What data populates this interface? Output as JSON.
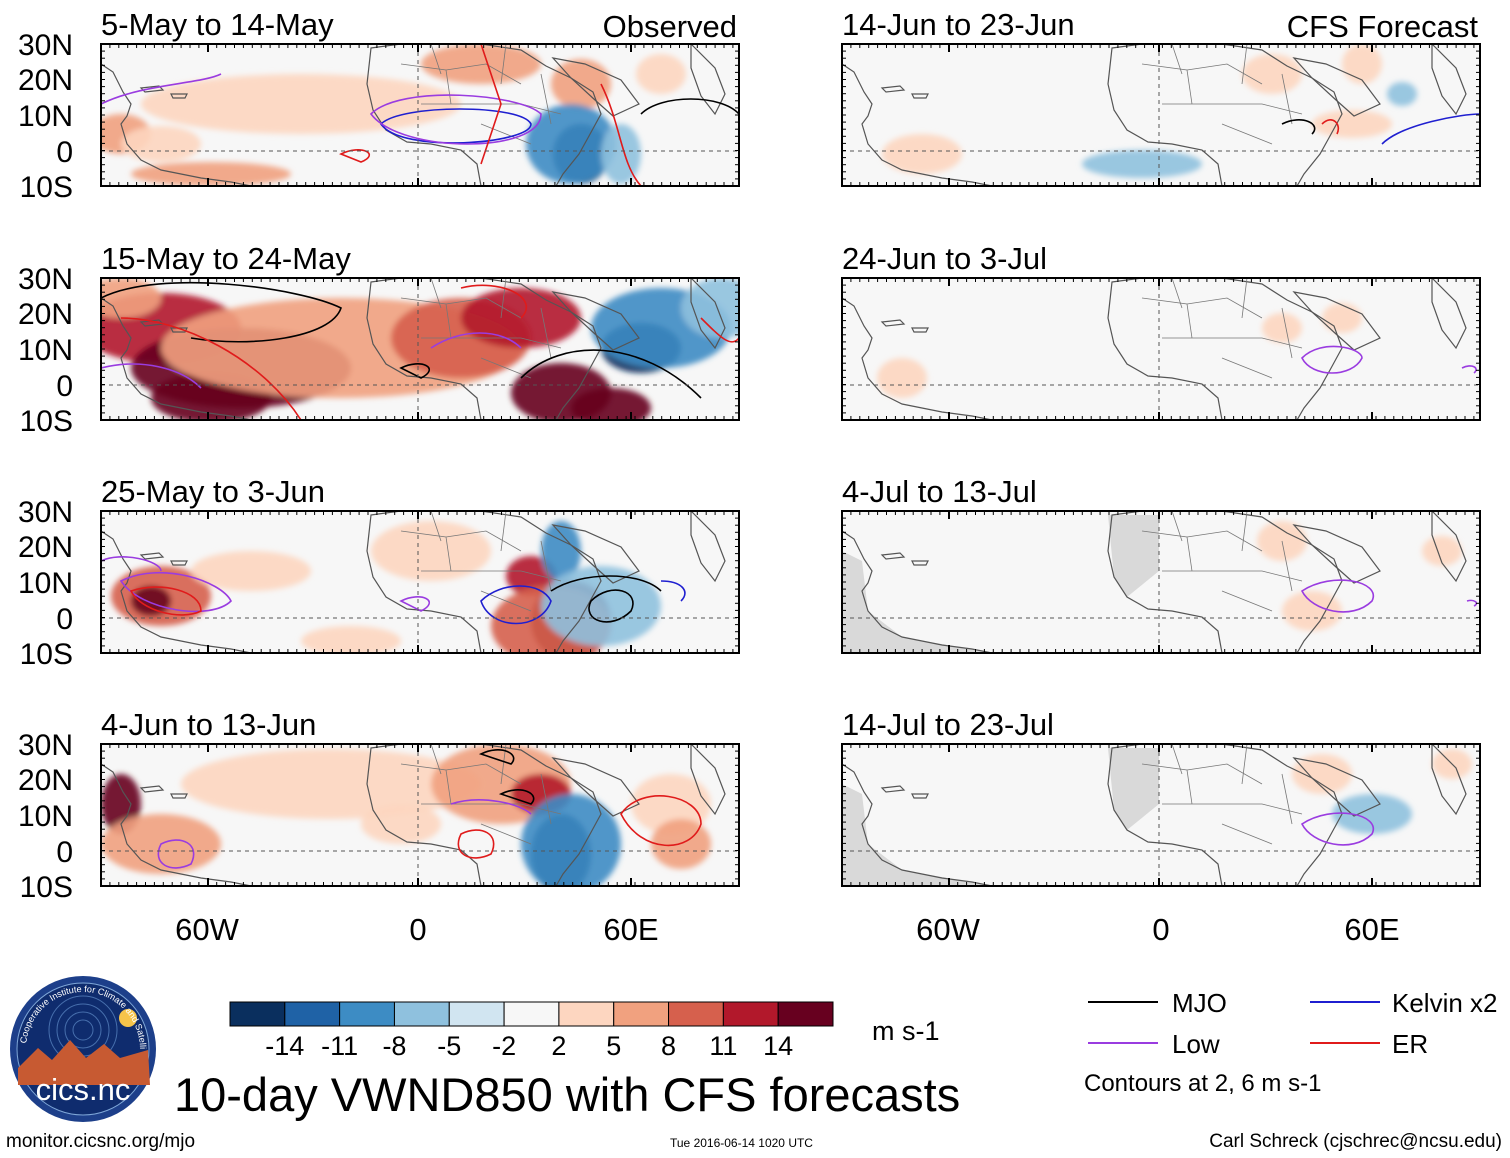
{
  "figure_title": "10-day VWND850 with CFS forecasts",
  "columns": {
    "observed_header": "Observed",
    "forecast_header": "CFS Forecast"
  },
  "lat_labels": [
    "30N",
    "20N",
    "10N",
    "0",
    "10S"
  ],
  "lon_labels": [
    "60W",
    "0",
    "60E"
  ],
  "panels": [
    {
      "id": "obs-1",
      "column": "observed",
      "period": "5-May to 14-May"
    },
    {
      "id": "obs-2",
      "column": "observed",
      "period": "15-May to 24-May"
    },
    {
      "id": "obs-3",
      "column": "observed",
      "period": "25-May to 3-Jun"
    },
    {
      "id": "obs-4",
      "column": "observed",
      "period": "4-Jun to 13-Jun"
    },
    {
      "id": "fc-1",
      "column": "forecast",
      "period": "14-Jun to 23-Jun"
    },
    {
      "id": "fc-2",
      "column": "forecast",
      "period": "24-Jun to 3-Jul"
    },
    {
      "id": "fc-3",
      "column": "forecast",
      "period": "4-Jul to 13-Jul"
    },
    {
      "id": "fc-4",
      "column": "forecast",
      "period": "14-Jul to 23-Jul"
    }
  ],
  "colorbar": {
    "ticks": [
      "-14",
      "-11",
      "-8",
      "-5",
      "-2",
      "2",
      "5",
      "8",
      "11",
      "14"
    ],
    "colors": [
      "#0a2f5e",
      "#1f62a6",
      "#3d8cc4",
      "#8fc1de",
      "#d1e5f1",
      "#f7f7f7",
      "#fdd6c0",
      "#f1a17f",
      "#d6604d",
      "#b2182b",
      "#67001f"
    ],
    "units": "m s-1"
  },
  "legend": {
    "items": [
      {
        "label": "MJO",
        "color": "#000000"
      },
      {
        "label": "Kelvin x2",
        "color": "#1f1fd0"
      },
      {
        "label": "Low",
        "color": "#9a3ce0"
      },
      {
        "label": "ER",
        "color": "#e01b1b"
      }
    ],
    "note": "Contours at 2, 6 m s-1"
  },
  "logo": {
    "text": "cics.nc",
    "ring_text": "Cooperative Institute for Climate and Satellites"
  },
  "footer": {
    "url": "monitor.cicsnc.org/mjo",
    "timestamp": "Tue 2016-06-14 1020 UTC",
    "author": "Carl Schreck (cjschrec@ncsu.edu)"
  }
}
